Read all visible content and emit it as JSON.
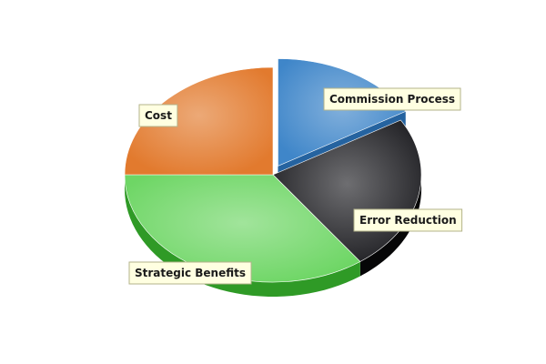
{
  "chart_data": {
    "type": "pie",
    "style": "3d-exploded",
    "title": "",
    "slices": [
      {
        "label": "Commission Process",
        "value": 16.5,
        "color": "#3f86c9",
        "side": "#2563a0",
        "exploded": true
      },
      {
        "label": "Error Reduction",
        "value": 23.5,
        "color": "#202024",
        "side": "#060607"
      },
      {
        "label": "Strategic Benefits",
        "value": 35.0,
        "color": "#6ed665",
        "side": "#2f9a26"
      },
      {
        "label": "Cost",
        "value": 25.0,
        "color": "#e27a2e",
        "side": "#a04f12"
      }
    ],
    "start_angle_deg": 0,
    "direction": "clockwise",
    "legend": "none",
    "label_style": "callout-box"
  }
}
